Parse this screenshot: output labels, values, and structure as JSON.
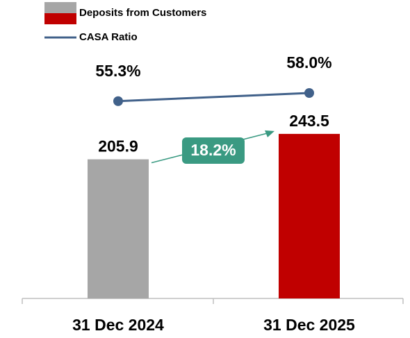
{
  "chart_data": {
    "type": "bar",
    "categories": [
      "31 Dec 2024",
      "31 Dec 2025"
    ],
    "series": [
      {
        "name": "Deposits from Customers",
        "type": "bar",
        "colors": [
          "#a6a6a6",
          "#c00000"
        ],
        "values": [
          205.9,
          243.5
        ]
      },
      {
        "name": "CASA Ratio",
        "type": "line",
        "axis": "y2",
        "color": "#41618a",
        "values": [
          55.3,
          58.0
        ],
        "value_labels": [
          "55.3%",
          "58.0%"
        ]
      }
    ],
    "annotations": [
      "18.2%"
    ],
    "annotation_color": "#3a9a82",
    "ylim": [
      0,
      380
    ],
    "y2lim": [
      -10,
      75
    ]
  }
}
